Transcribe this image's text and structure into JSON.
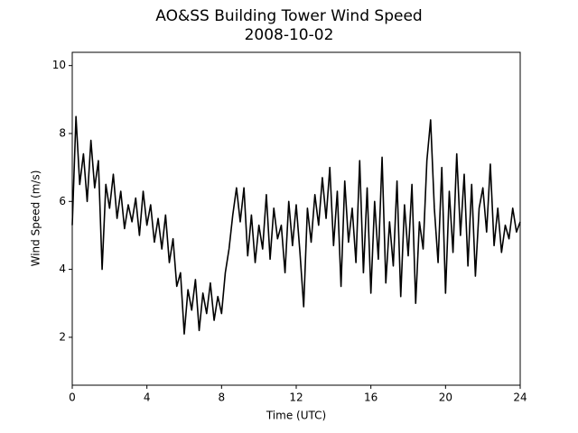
{
  "chart_data": {
    "type": "line",
    "title": "AO&SS Building Tower Wind Speed",
    "subtitle": "2008-10-02",
    "x_label": "Time (UTC)",
    "y_label": "Wind Speed (m/s)",
    "xlim": [
      0,
      24
    ],
    "xticks": [
      0,
      4,
      8,
      12,
      16,
      20,
      24
    ],
    "ylim": [
      0.59,
      10.39
    ],
    "yticks": [
      2,
      4,
      6,
      8,
      10
    ],
    "x": [
      0,
      0.2,
      0.4,
      0.6,
      0.8,
      1.0,
      1.2,
      1.4,
      1.6,
      1.8,
      2.0,
      2.2,
      2.4,
      2.6,
      2.8,
      3.0,
      3.2,
      3.4,
      3.6,
      3.8,
      4.0,
      4.2,
      4.4,
      4.6,
      4.8,
      5.0,
      5.2,
      5.4,
      5.6,
      5.8,
      6.0,
      6.2,
      6.4,
      6.6,
      6.8,
      7.0,
      7.2,
      7.4,
      7.6,
      7.8,
      8.0,
      8.2,
      8.4,
      8.6,
      8.8,
      9.0,
      9.2,
      9.4,
      9.6,
      9.8,
      10.0,
      10.2,
      10.4,
      10.6,
      10.8,
      11.0,
      11.2,
      11.4,
      11.6,
      11.8,
      12.0,
      12.2,
      12.4,
      12.6,
      12.8,
      13.0,
      13.2,
      13.4,
      13.6,
      13.8,
      14.0,
      14.2,
      14.4,
      14.6,
      14.8,
      15.0,
      15.2,
      15.4,
      15.6,
      15.8,
      16.0,
      16.2,
      16.4,
      16.6,
      16.8,
      17.0,
      17.2,
      17.4,
      17.6,
      17.8,
      18.0,
      18.2,
      18.4,
      18.6,
      18.8,
      19.0,
      19.2,
      19.4,
      19.6,
      19.8,
      20.0,
      20.2,
      20.4,
      20.6,
      20.8,
      21.0,
      21.2,
      21.4,
      21.6,
      21.8,
      22.0,
      22.2,
      22.4,
      22.6,
      22.8,
      23.0,
      23.2,
      23.4,
      23.6,
      23.8,
      24.0
    ],
    "series": [
      {
        "color": "#000000",
        "values": [
          5.3,
          8.5,
          6.5,
          7.4,
          6.0,
          7.8,
          6.4,
          7.2,
          4.0,
          6.5,
          5.8,
          6.8,
          5.5,
          6.3,
          5.2,
          5.9,
          5.4,
          6.1,
          5.0,
          6.3,
          5.3,
          5.9,
          4.8,
          5.5,
          4.6,
          5.6,
          4.2,
          4.9,
          3.5,
          3.9,
          2.1,
          3.4,
          2.8,
          3.7,
          2.2,
          3.3,
          2.7,
          3.6,
          2.5,
          3.2,
          2.7,
          3.9,
          4.6,
          5.6,
          6.4,
          5.4,
          6.4,
          4.4,
          5.6,
          4.2,
          5.3,
          4.6,
          6.2,
          4.3,
          5.8,
          4.9,
          5.3,
          3.9,
          6.0,
          4.7,
          5.9,
          4.5,
          2.9,
          5.8,
          4.8,
          6.2,
          5.3,
          6.7,
          5.5,
          7.0,
          4.7,
          6.3,
          3.5,
          6.6,
          4.8,
          5.8,
          4.2,
          7.2,
          3.9,
          6.4,
          3.3,
          6.0,
          4.3,
          7.3,
          3.6,
          5.4,
          4.1,
          6.6,
          3.2,
          5.9,
          4.4,
          6.5,
          3.0,
          5.4,
          4.6,
          7.2,
          8.4,
          5.8,
          4.2,
          7.0,
          3.3,
          6.3,
          4.5,
          7.4,
          5.0,
          6.8,
          4.1,
          6.5,
          3.8,
          5.8,
          6.4,
          5.1,
          7.1,
          4.7,
          5.8,
          4.5,
          5.3,
          4.9,
          5.8,
          5.1,
          5.4
        ]
      }
    ]
  }
}
